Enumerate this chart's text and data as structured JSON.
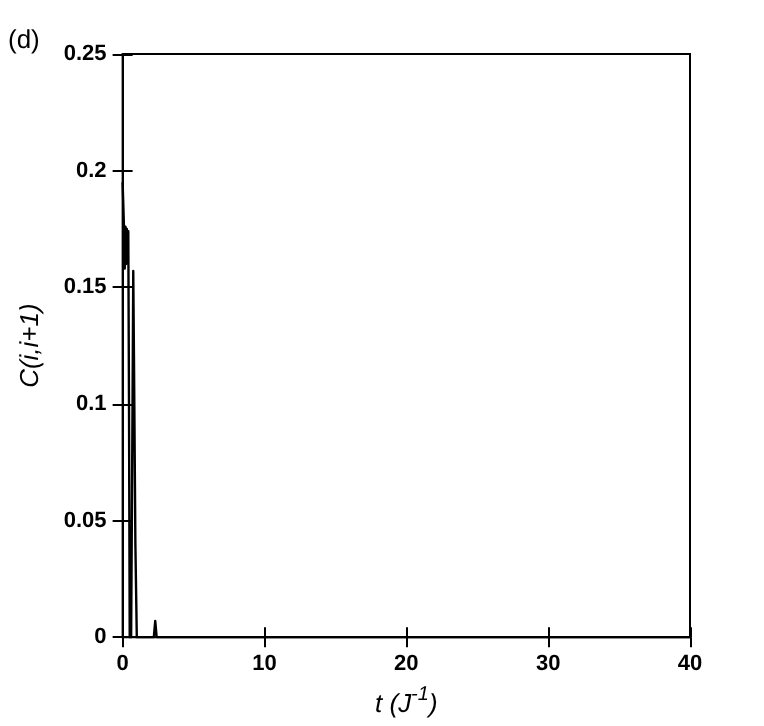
{
  "chart_data": {
    "type": "line",
    "xlabel": "t (J$^{-1}$)",
    "ylabel": "C(i,i+1)",
    "annotations": [
      "(d)"
    ],
    "series": [
      {
        "color": "#000000",
        "x": [
          0,
          0.05,
          0.1,
          0.15,
          0.2,
          0.25,
          0.3,
          0.35,
          0.4,
          0.45,
          0.5,
          0.6,
          0.7,
          0.75,
          0.8,
          0.9,
          1.0,
          1.5,
          2.0,
          2.2,
          2.3,
          2.4,
          2.6,
          5,
          10,
          20,
          30,
          40
        ],
        "values": [
          0.195,
          0.185,
          0.175,
          0.158,
          0.176,
          0.16,
          0.175,
          0.165,
          0.174,
          0.1,
          0,
          0,
          0.1,
          0.157,
          0.12,
          0.04,
          0,
          0,
          0,
          0,
          0.007,
          0,
          0,
          0,
          0,
          0,
          0,
          0
        ]
      }
    ],
    "xlim": [
      0,
      40
    ],
    "xticks": [
      0,
      10,
      20,
      30,
      40
    ],
    "ylim": [
      0,
      0.25
    ],
    "yticks": [
      0,
      0.05,
      0.1,
      0.15,
      0.2,
      0.25
    ],
    "grid": false,
    "marker": "none",
    "line_style": "solid"
  }
}
